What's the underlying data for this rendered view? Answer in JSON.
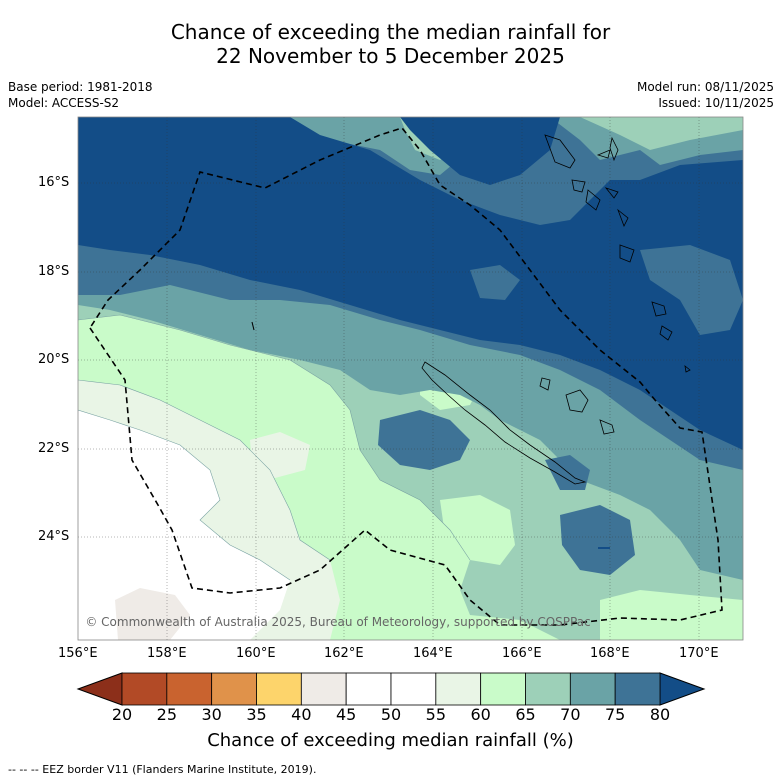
{
  "title": {
    "line1": "Chance of exceeding the median rainfall for",
    "line2": "22 November to 5 December 2025"
  },
  "meta": {
    "base_period": "Base period: 1981-2018",
    "model": "Model: ACCESS-S2",
    "model_run": "Model run: 08/11/2025",
    "issued": "Issued: 10/11/2025"
  },
  "map": {
    "lat_labels": [
      "16°S",
      "18°S",
      "20°S",
      "22°S",
      "24°S"
    ],
    "lon_labels": [
      "156°E",
      "158°E",
      "160°E",
      "162°E",
      "164°E",
      "166°E",
      "168°E",
      "170°E"
    ],
    "copyright": "© Commonwealth of Australia 2025, Bureau of Meteorology, supported by COSPPac"
  },
  "colorbar": {
    "ticks": [
      "20",
      "25",
      "30",
      "35",
      "40",
      "45",
      "50",
      "55",
      "60",
      "65",
      "70",
      "75",
      "80"
    ],
    "colors": [
      "#b24a26",
      "#c9632f",
      "#e0924a",
      "#fdd46b",
      "#efebe7",
      "#ffffff",
      "#ffffff",
      "#e9f5e6",
      "#c9fbc9",
      "#9dd0b8",
      "#6aa3a6",
      "#3e7396"
    ],
    "low_color": "#8c2f1a",
    "high_color": "#134d87",
    "title": "Chance of exceeding median rainfall (%)"
  },
  "footer": "--  --  -- EEZ border V11 (Flanders Marine Institute, 2019)."
}
